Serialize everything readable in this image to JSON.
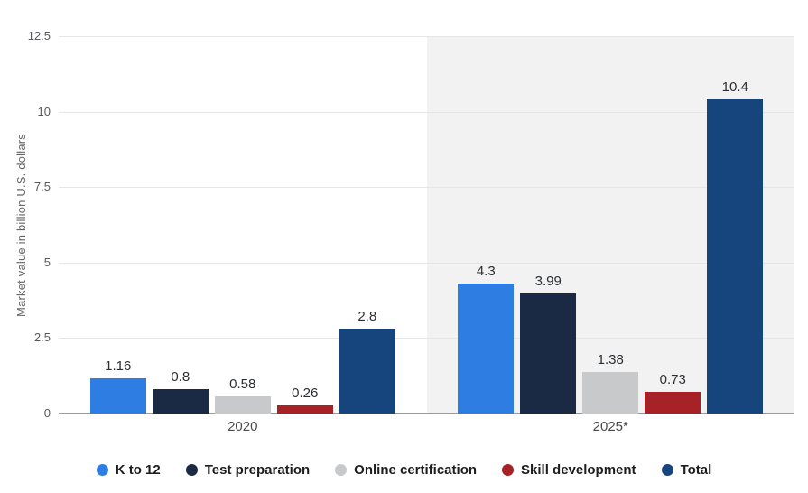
{
  "chart_data": {
    "type": "bar",
    "title": "",
    "xlabel": "",
    "ylabel": "Market value in billion U.S. dollars",
    "ylim": [
      0,
      12.5
    ],
    "yticks": [
      0,
      2.5,
      5,
      7.5,
      10,
      12.5
    ],
    "grid": true,
    "legend_position": "bottom",
    "categories": [
      "2020",
      "2025*"
    ],
    "series": [
      {
        "name": "K to 12",
        "color": "#2e7de3",
        "values": [
          1.16,
          4.3
        ]
      },
      {
        "name": "Test preparation",
        "color": "#1b2a44",
        "values": [
          0.8,
          3.99
        ]
      },
      {
        "name": "Online certification",
        "color": "#c7c9cb",
        "values": [
          0.58,
          1.38
        ]
      },
      {
        "name": "Skill development",
        "color": "#a72226",
        "values": [
          0.26,
          0.73
        ]
      },
      {
        "name": "Total",
        "color": "#16447c",
        "values": [
          2.8,
          10.4
        ]
      }
    ],
    "highlight_band": {
      "category": "2025*",
      "color": "#f2f2f2"
    }
  },
  "colors": {
    "gridline": "#e6e6e6",
    "axis_line": "#9a9a9a",
    "tick_label": "#55595e",
    "value_label": "#2b2f33",
    "legend_label": "#1d1d1d"
  }
}
